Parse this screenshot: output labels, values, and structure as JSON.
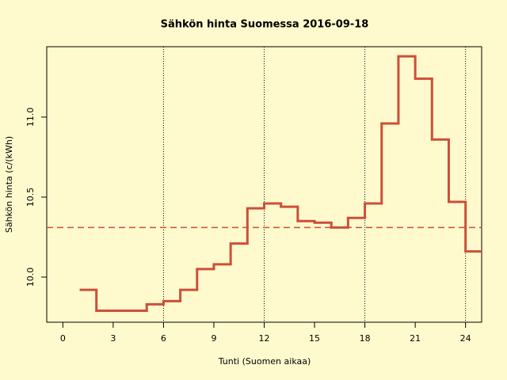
{
  "chart_data": {
    "type": "step",
    "title": "Sähkön hinta Suomessa 2016-09-18",
    "x_label": "Tunti (Suomen aikaa)",
    "y_label": "Sähkön hinta (c/(kWh)",
    "x": [
      1,
      2,
      3,
      4,
      5,
      6,
      7,
      8,
      9,
      10,
      11,
      12,
      13,
      14,
      15,
      16,
      17,
      18,
      19,
      20,
      21,
      22,
      23,
      24
    ],
    "values": [
      9.92,
      9.79,
      9.79,
      9.79,
      9.83,
      9.85,
      9.92,
      10.05,
      10.08,
      10.21,
      10.43,
      10.46,
      10.44,
      10.35,
      10.34,
      10.31,
      10.37,
      10.46,
      10.96,
      11.38,
      11.24,
      10.86,
      10.47,
      10.16
    ],
    "color": "#cd4f39",
    "mean": 10.31,
    "vlines": [
      6,
      12,
      18,
      24
    ],
    "xlim": [
      -0.96,
      24.96
    ],
    "ylim": [
      9.718,
      11.44
    ],
    "xticks": [
      0,
      3,
      6,
      9,
      12,
      15,
      18,
      21,
      24
    ],
    "yticks": [
      {
        "value": 10,
        "label": "10.0"
      },
      10.5,
      {
        "value": 11,
        "label": "11.0"
      }
    ]
  }
}
